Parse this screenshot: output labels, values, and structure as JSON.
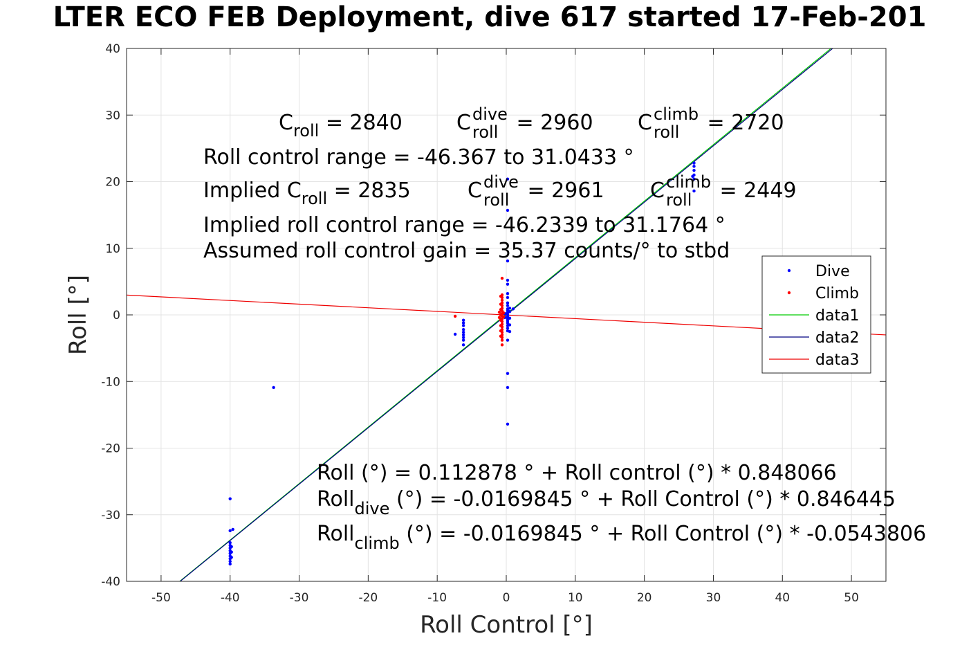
{
  "title": "LTER ECO FEB Deployment, dive 617 started 17-Feb-201",
  "chart_data": {
    "type": "scatter",
    "xlabel": "Roll Control [°]",
    "ylabel": "Roll [°]",
    "xlim": [
      -55,
      55
    ],
    "ylim": [
      -40,
      40
    ],
    "xticks": [
      -50,
      -40,
      -30,
      -20,
      -10,
      0,
      10,
      20,
      30,
      40,
      50
    ],
    "yticks": [
      -40,
      -30,
      -20,
      -10,
      0,
      10,
      20,
      30,
      40
    ],
    "grid": true,
    "legend_position": "right",
    "series": [
      {
        "name": "Dive",
        "kind": "points",
        "color": "#0000ff",
        "points": [
          [
            -40,
            -27.6
          ],
          [
            -40,
            -32.4
          ],
          [
            -39.6,
            -32.2
          ],
          [
            -40,
            -34.2
          ],
          [
            -40,
            -34.6
          ],
          [
            -40,
            -35.0
          ],
          [
            -40,
            -35.4
          ],
          [
            -40,
            -35.8
          ],
          [
            -40,
            -36.2
          ],
          [
            -40,
            -36.6
          ],
          [
            -40,
            -37.0
          ],
          [
            -40,
            -37.4
          ],
          [
            -39.8,
            -34.8
          ],
          [
            -39.8,
            -35.6
          ],
          [
            -39.8,
            -36.4
          ],
          [
            -33.7,
            -10.9
          ],
          [
            -7.4,
            -2.9
          ],
          [
            -6.2,
            -0.8
          ],
          [
            -6.2,
            -1.2
          ],
          [
            -6.2,
            -1.6
          ],
          [
            -6.2,
            -2.2
          ],
          [
            -6.2,
            -2.6
          ],
          [
            -6.2,
            -3.0
          ],
          [
            -6.2,
            -3.4
          ],
          [
            -6.2,
            -3.8
          ],
          [
            -6.2,
            -4.5
          ],
          [
            0.2,
            8.1
          ],
          [
            0.2,
            5.2
          ],
          [
            0.2,
            4.6
          ],
          [
            0.2,
            3.2
          ],
          [
            0.2,
            2.6
          ],
          [
            0.2,
            1.8
          ],
          [
            0.2,
            1.4
          ],
          [
            0.2,
            0.9
          ],
          [
            0.2,
            0.6
          ],
          [
            0.2,
            0.3
          ],
          [
            0.2,
            0.0
          ],
          [
            0.2,
            -0.3
          ],
          [
            0.2,
            -0.6
          ],
          [
            0.2,
            -0.9
          ],
          [
            0.2,
            -1.2
          ],
          [
            0.2,
            -1.6
          ],
          [
            0.2,
            -2.0
          ],
          [
            0.2,
            -2.4
          ],
          [
            0.2,
            -3.8
          ],
          [
            0.2,
            -8.8
          ],
          [
            0.2,
            -10.9
          ],
          [
            0.2,
            -16.4
          ],
          [
            0.2,
            15.7
          ],
          [
            0.2,
            20.4
          ],
          [
            0.5,
            0.5
          ],
          [
            0.5,
            1.0
          ],
          [
            0.5,
            -0.5
          ],
          [
            0.5,
            -1.5
          ],
          [
            0.5,
            -2.5
          ],
          [
            1.0,
            0.9
          ],
          [
            -0.2,
            0.2
          ],
          [
            -0.2,
            -0.4
          ],
          [
            27.2,
            22.8
          ],
          [
            27.2,
            22.3
          ],
          [
            27.2,
            21.7
          ],
          [
            27.2,
            21.0
          ],
          [
            27.2,
            20.4
          ],
          [
            27.2,
            18.6
          ],
          [
            27.0,
            20.8
          ]
        ]
      },
      {
        "name": "Climb",
        "kind": "points",
        "color": "#ff0000",
        "points": [
          [
            -7.4,
            -0.2
          ],
          [
            -0.6,
            5.5
          ],
          [
            -0.6,
            3.0
          ],
          [
            -0.6,
            2.6
          ],
          [
            -0.6,
            2.2
          ],
          [
            -0.6,
            1.8
          ],
          [
            -0.6,
            1.4
          ],
          [
            -0.6,
            1.0
          ],
          [
            -0.6,
            0.6
          ],
          [
            -0.6,
            0.2
          ],
          [
            -0.6,
            -0.2
          ],
          [
            -0.6,
            -0.6
          ],
          [
            -0.6,
            -1.0
          ],
          [
            -0.6,
            -1.4
          ],
          [
            -0.6,
            -1.8
          ],
          [
            -0.6,
            -2.2
          ],
          [
            -0.6,
            -2.6
          ],
          [
            -0.6,
            -3.0
          ],
          [
            -0.6,
            -3.4
          ],
          [
            -0.6,
            -3.8
          ],
          [
            -0.6,
            -4.5
          ],
          [
            -0.8,
            2.8
          ],
          [
            -0.8,
            1.6
          ],
          [
            -0.8,
            0.8
          ],
          [
            -0.8,
            0.0
          ],
          [
            -0.8,
            -0.8
          ],
          [
            -0.8,
            -1.6
          ],
          [
            -0.8,
            -2.4
          ],
          [
            -0.8,
            -3.2
          ],
          [
            -1.0,
            0.4
          ],
          [
            -1.0,
            -0.4
          ],
          [
            -0.4,
            0.3
          ],
          [
            -0.4,
            -0.3
          ]
        ]
      },
      {
        "name": "data1",
        "kind": "line",
        "color": "#00cc00",
        "fit": {
          "intercept": 0.112878,
          "slope": 0.848066
        }
      },
      {
        "name": "data2",
        "kind": "line",
        "color": "#000080",
        "fit": {
          "intercept": -0.0169845,
          "slope": 0.846445
        }
      },
      {
        "name": "data3",
        "kind": "line",
        "color": "#ee0000",
        "fit": {
          "intercept": -0.0169845,
          "slope": -0.0543806
        }
      }
    ]
  },
  "annotations": {
    "c_roll": {
      "prefix": "C",
      "sub": "roll",
      "value": " = 2840"
    },
    "c_roll_dive": {
      "prefix": "C",
      "sup": "dive",
      "sub": "roll",
      "value": " = 2960"
    },
    "c_roll_climb": {
      "prefix": "C",
      "sup": "climb",
      "sub": "roll",
      "value": " = 2720"
    },
    "roll_range": "Roll control range = -46.367 to 31.0433 °",
    "implied_c_roll": {
      "prefix": "Implied C",
      "sub": "roll",
      "value": " = 2835"
    },
    "implied_c_roll_dive": {
      "prefix": "C",
      "sup": "dive",
      "sub": "roll",
      "value": " = 2961"
    },
    "implied_c_roll_climb": {
      "prefix": "C",
      "sup": "climb",
      "sub": "roll",
      "value": " = 2449"
    },
    "implied_range": "Implied roll control range = -46.2339 to 31.1764 °",
    "gain": "Assumed roll control gain = 35.37 counts/° to stbd",
    "fit_all": "Roll (°) = 0.112878 ° + Roll control (°) * 0.848066",
    "fit_dive": {
      "prefix": "Roll",
      "sub": "dive",
      "value": " (°) = -0.0169845 ° + Roll Control (°) * 0.846445"
    },
    "fit_climb": {
      "prefix": "Roll",
      "sub": "climb",
      "value": " (°) = -0.0169845 ° + Roll Control (°) * -0.0543806"
    }
  }
}
